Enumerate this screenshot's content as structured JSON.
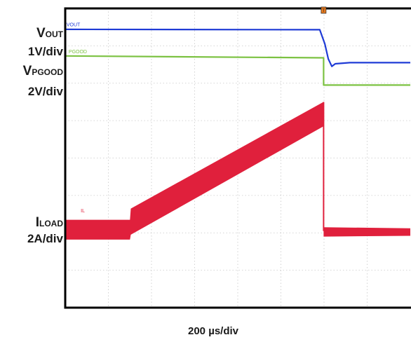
{
  "labels": {
    "vout_main": "V",
    "vout_sub": "OUT",
    "vout_scale": "1V/div",
    "vpgood_main": "V",
    "vpgood_sub": "PGOOD",
    "vpgood_scale": "2V/div",
    "iload_main": "I",
    "iload_sub": "LOAD",
    "iload_scale": "2A/div",
    "time_scale": "200 µs/div"
  },
  "chart_data": {
    "type": "line",
    "title": "",
    "divisions": {
      "x": 8,
      "y": 8
    },
    "trigger_marker": {
      "x_div": 5.99,
      "label": "T"
    },
    "series": [
      {
        "name": "VOUT",
        "color": "#1f3bd6",
        "points": [
          [
            0,
            0.56
          ],
          [
            5.9,
            0.57
          ],
          [
            6.02,
            0.95
          ],
          [
            6.1,
            1.35
          ],
          [
            6.18,
            1.55
          ],
          [
            6.26,
            1.48
          ],
          [
            6.6,
            1.45
          ],
          [
            8,
            1.45
          ]
        ]
      },
      {
        "name": "PGOOD",
        "color": "#7cc242",
        "points": [
          [
            0,
            1.27
          ],
          [
            5.99,
            1.32
          ],
          [
            5.99,
            2.05
          ],
          [
            8,
            2.05
          ]
        ]
      },
      {
        "name": "IL",
        "color": "#e0203c",
        "band": [
          [
            0,
            5.65,
            6.18
          ],
          [
            1.5,
            5.65,
            6.18
          ],
          [
            1.52,
            5.35,
            6.05
          ],
          [
            5.99,
            2.5,
            3.15
          ],
          [
            5.99,
            5.85,
            6.1
          ],
          [
            8,
            5.88,
            6.08
          ]
        ]
      }
    ]
  }
}
